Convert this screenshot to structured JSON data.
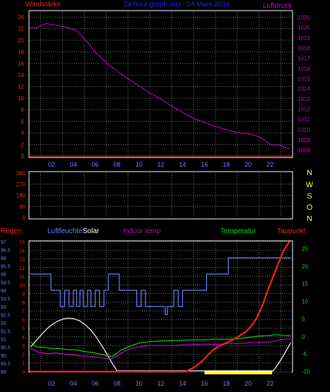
{
  "colors": {
    "background": "#000000",
    "frame": "#ffffff",
    "grid": "#7a7a7a",
    "wind": "#ff2020",
    "pressure": "#d000d0",
    "title": "#2020ff",
    "rain": "#ff2020",
    "humidity": "#6f7fff",
    "solar": "#ffffff",
    "indoor": "#d000d0",
    "temperature": "#00e000",
    "dewpoint": "#ff1010",
    "sun_bar": "#ffff33",
    "direction_labels": "#ffff33"
  },
  "chart_data": [
    {
      "type": "line",
      "title": "24 hour graph day : 04 Mars 2016",
      "x_ticks": [
        "02",
        "04",
        "06",
        "08",
        "10",
        "12",
        "14",
        "16",
        "18",
        "20",
        "22"
      ],
      "left_axis": {
        "label": "Windstärke",
        "ticks": [
          "0",
          "2",
          "4",
          "6",
          "8",
          "10",
          "12",
          "14",
          "16",
          "18",
          "20",
          "22",
          "24"
        ],
        "ylim": [
          0,
          25
        ]
      },
      "right_axis": {
        "label": "Luftdruck",
        "ticks": [
          "1008",
          "1009",
          "1010",
          "1011",
          "1012",
          "1013",
          "1014",
          "1015",
          "1016",
          "1017",
          "1018",
          "1019",
          "1020",
          "1021"
        ],
        "ylim": [
          1007.4,
          1021.6
        ]
      },
      "series": [
        {
          "name": "Windstärke",
          "axis": "left",
          "color_key": "wind",
          "x": [
            0,
            24
          ],
          "values": [
            0,
            0
          ]
        },
        {
          "name": "Luftdruck",
          "axis": "right",
          "color_key": "pressure",
          "x": [
            0,
            0.7,
            1.5,
            2.0,
            2.7,
            3.5,
            4.3,
            4.9,
            5.5,
            6.0,
            6.6,
            7.3,
            8.2,
            9.0,
            10.0,
            11.0,
            12.0,
            13.0,
            14.0,
            15.0,
            16.0,
            17.0,
            18.0,
            19.0,
            20.0,
            21.0,
            21.7,
            22.1,
            22.8,
            23.5,
            23.8
          ],
          "values": [
            1020.0,
            1020.0,
            1020.4,
            1020.3,
            1020.2,
            1020.0,
            1019.7,
            1019.0,
            1018.3,
            1017.6,
            1017.0,
            1016.3,
            1015.6,
            1015.0,
            1014.3,
            1013.6,
            1013.0,
            1012.3,
            1011.7,
            1011.1,
            1010.7,
            1010.3,
            1010.0,
            1009.7,
            1009.6,
            1009.3,
            1008.8,
            1008.5,
            1008.5,
            1008.2,
            1008.1
          ]
        }
      ]
    },
    {
      "type": "line",
      "x_ticks": [
        "02",
        "04",
        "06",
        "08",
        "10",
        "12",
        "14",
        "16",
        "18",
        "20",
        "22"
      ],
      "left_axis": {
        "ticks": [
          "0",
          "90",
          "180",
          "270",
          "360"
        ],
        "ylim": [
          0,
          360
        ]
      },
      "right_labels": [
        "N",
        "W",
        "S",
        "O",
        "N"
      ],
      "series": []
    },
    {
      "type": "line",
      "x_ticks": [
        "02",
        "04",
        "06",
        "08",
        "10",
        "12",
        "14",
        "16",
        "18",
        "20",
        "22"
      ],
      "legend": [
        "Regen",
        "Luftfeuchte",
        "Solar",
        "Indoor temp",
        "Temperatur",
        "Taupunkt"
      ],
      "axes": {
        "humidity": {
          "ticks": [
            "89",
            "89.5",
            "90",
            "90.5",
            "91",
            "91.5",
            "92",
            "92.5",
            "93",
            "93.5",
            "94",
            "94.5",
            "95",
            "95.5",
            "96",
            "96.5",
            "97"
          ],
          "ylim": [
            89,
            97
          ]
        },
        "rain": {
          "ticks": [
            "0",
            "1",
            "2",
            "3",
            "4",
            "5",
            "6",
            "7",
            "8",
            "9",
            "10",
            "11",
            "12",
            "13",
            "14",
            "15"
          ],
          "ylim": [
            0,
            15
          ]
        },
        "temperature": {
          "ticks": [
            "-10",
            "-5",
            "0",
            "5",
            "10",
            "15",
            "20",
            "25"
          ],
          "ylim": [
            -10,
            27
          ]
        }
      },
      "series": [
        {
          "name": "Regen",
          "axis": "rain",
          "color_key": "rain",
          "x": [
            0,
            14.3,
            14.8,
            15.3,
            15.8,
            16.3,
            16.8,
            17.3,
            17.8,
            18.3,
            18.8,
            19.3,
            19.8,
            20.3,
            20.8,
            21.3,
            21.8,
            22.3,
            22.8,
            23.3,
            23.8
          ],
          "values": [
            0,
            0,
            0.3,
            0.7,
            1.2,
            1.9,
            2.5,
            2.9,
            3.2,
            3.5,
            3.8,
            4.2,
            4.6,
            5.3,
            6.2,
            7.6,
            9.4,
            11.0,
            12.6,
            14.1,
            15.0
          ]
        },
        {
          "name": "Luftfeuchte",
          "axis": "humidity",
          "color_key": "humidity",
          "x": [
            0.1,
            1.95,
            1.95,
            2.8,
            2.8,
            3.2,
            3.2,
            3.6,
            3.6,
            4.0,
            4.0,
            4.3,
            4.3,
            4.6,
            4.6,
            4.9,
            4.9,
            5.3,
            5.3,
            5.6,
            5.6,
            6.0,
            6.0,
            6.4,
            6.4,
            6.8,
            6.8,
            7.2,
            7.2,
            8.2,
            8.2,
            9.8,
            9.8,
            10.2,
            10.2,
            10.6,
            10.6,
            10.9,
            10.9,
            11.2,
            11.2,
            12.4,
            12.4,
            12.6,
            12.6,
            13.2,
            13.2,
            13.6,
            13.6,
            14.0,
            14.0,
            16.2,
            16.2,
            17.6,
            17.6,
            18.2,
            18.2,
            23.9
          ],
          "values": [
            95,
            95,
            94,
            94,
            93,
            93,
            94,
            94,
            93,
            93,
            94,
            94,
            93,
            93,
            94,
            94,
            93,
            93,
            94,
            94,
            93,
            93,
            94,
            94,
            93,
            93,
            94,
            94,
            95,
            95,
            94,
            94,
            93,
            93,
            94,
            94,
            93,
            93,
            93,
            93,
            93,
            93,
            92.5,
            92.5,
            93,
            93,
            94,
            94,
            93,
            93,
            94,
            94,
            95,
            95,
            95,
            95,
            96,
            96
          ]
        },
        {
          "name": "Solar",
          "axis": "temperature",
          "color_key": "solar",
          "x": [
            0.1,
            0.6,
            1.1,
            1.6,
            2.1,
            2.6,
            3.1,
            3.6,
            4.1,
            4.6,
            5.1,
            5.6,
            6.1,
            6.6,
            7.1,
            7.6,
            8.0,
            22.3,
            22.8,
            23.3,
            23.9
          ],
          "values": [
            -3.0,
            -1.2,
            0.6,
            2.2,
            3.5,
            4.4,
            5.0,
            5.2,
            5.0,
            4.4,
            3.3,
            1.8,
            -0.2,
            -2.6,
            -5.2,
            -7.9,
            -9.8,
            -9.8,
            -7.6,
            -5.1,
            -1.8
          ]
        },
        {
          "name": "Indoor temp",
          "axis": "temperature",
          "color_key": "indoor",
          "x": [
            0.1,
            0.8,
            1.6,
            2.4,
            3.2,
            4.0,
            4.8,
            5.6,
            6.4,
            7.0,
            7.6,
            8.4,
            9.2,
            10.0,
            11.0,
            12.0,
            13.0,
            14.0,
            15.0,
            16.0,
            17.0,
            18.0,
            19.0,
            20.0,
            21.0,
            22.0,
            22.6,
            23.2,
            23.9
          ],
          "values": [
            -3.5,
            -4.5,
            -4.9,
            -4.7,
            -5.1,
            -5.3,
            -5.6,
            -5.7,
            -6.0,
            -6.4,
            -6.3,
            -4.7,
            -3.5,
            -3.0,
            -2.6,
            -2.6,
            -2.6,
            -2.4,
            -2.3,
            -2.2,
            -2.3,
            -2.1,
            -2.0,
            -1.9,
            -1.7,
            -1.6,
            -1.3,
            -0.8,
            -0.7
          ]
        },
        {
          "name": "Temperatur",
          "axis": "temperature",
          "color_key": "temperature",
          "x": [
            0.1,
            0.6,
            1.2,
            2.0,
            2.8,
            3.6,
            4.2,
            5.0,
            5.8,
            6.4,
            7.0,
            7.6,
            8.4,
            9.2,
            10.0,
            11.0,
            12.0,
            13.0,
            14.0,
            15.0,
            16.0,
            17.0,
            18.0,
            19.0,
            20.0,
            21.0,
            22.0,
            22.6,
            23.2,
            23.9
          ],
          "values": [
            -1.6,
            -3.0,
            -3.1,
            -3.4,
            -3.5,
            -3.8,
            -3.8,
            -4.3,
            -4.6,
            -5.0,
            -5.5,
            -5.7,
            -3.8,
            -2.8,
            -1.9,
            -1.5,
            -1.3,
            -1.2,
            -1.1,
            -1.0,
            -1.0,
            -0.8,
            -0.8,
            -0.7,
            -0.3,
            0.1,
            0.3,
            0.5,
            0.3,
            0.2
          ]
        },
        {
          "name": "Taupunkt",
          "axis": "rain",
          "color_key": "dewpoint",
          "x": [
            0.1,
            14.1
          ],
          "values": [
            0,
            0
          ]
        }
      ],
      "sun_periods": [
        [
          16.0,
          22.2
        ]
      ]
    }
  ]
}
